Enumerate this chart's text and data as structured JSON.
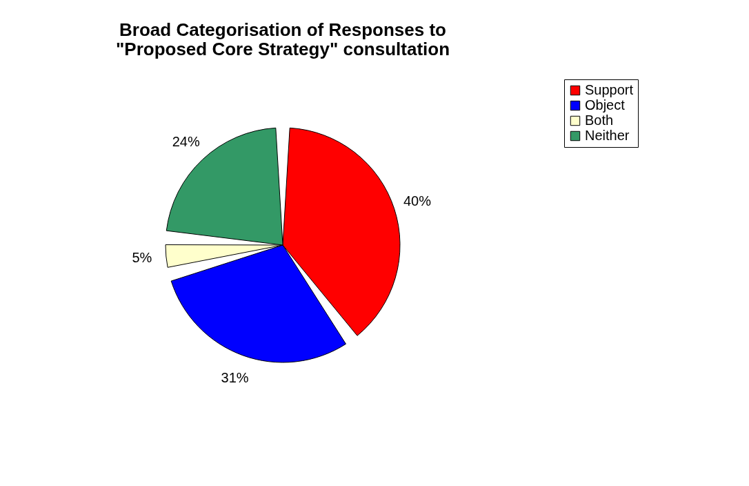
{
  "chart_data": {
    "type": "pie",
    "title": "Broad Categorisation of Responses to\n\"Proposed Core Strategy\" consultation",
    "categories": [
      "Support",
      "Object",
      "Both",
      "Neither"
    ],
    "values": [
      40,
      31,
      5,
      24
    ],
    "colors": [
      "#ff0000",
      "#0000ff",
      "#ffffcc",
      "#339966"
    ],
    "value_labels": [
      "40%",
      "31%",
      "5%",
      "24%"
    ],
    "legend": "right"
  }
}
